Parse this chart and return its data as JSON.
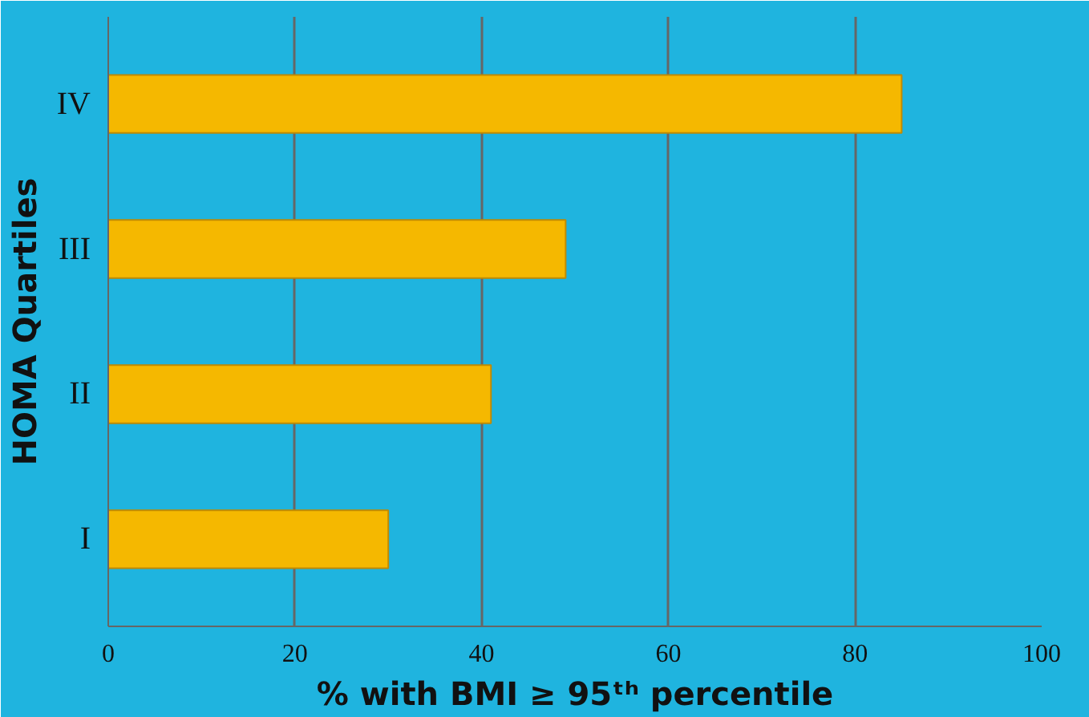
{
  "chart_data": {
    "type": "bar",
    "orientation": "horizontal",
    "categories": [
      "IV",
      "III",
      "II",
      "I"
    ],
    "values": [
      85,
      49,
      41,
      30
    ],
    "color": "#f5b800",
    "xlim": [
      0,
      100
    ],
    "xticks": [
      0,
      20,
      40,
      60,
      80,
      100
    ],
    "xlabel": "% with BMI ≥ 95ᵗʰ percentile",
    "ylabel": "HOMA Quartiles",
    "grid": "x"
  }
}
